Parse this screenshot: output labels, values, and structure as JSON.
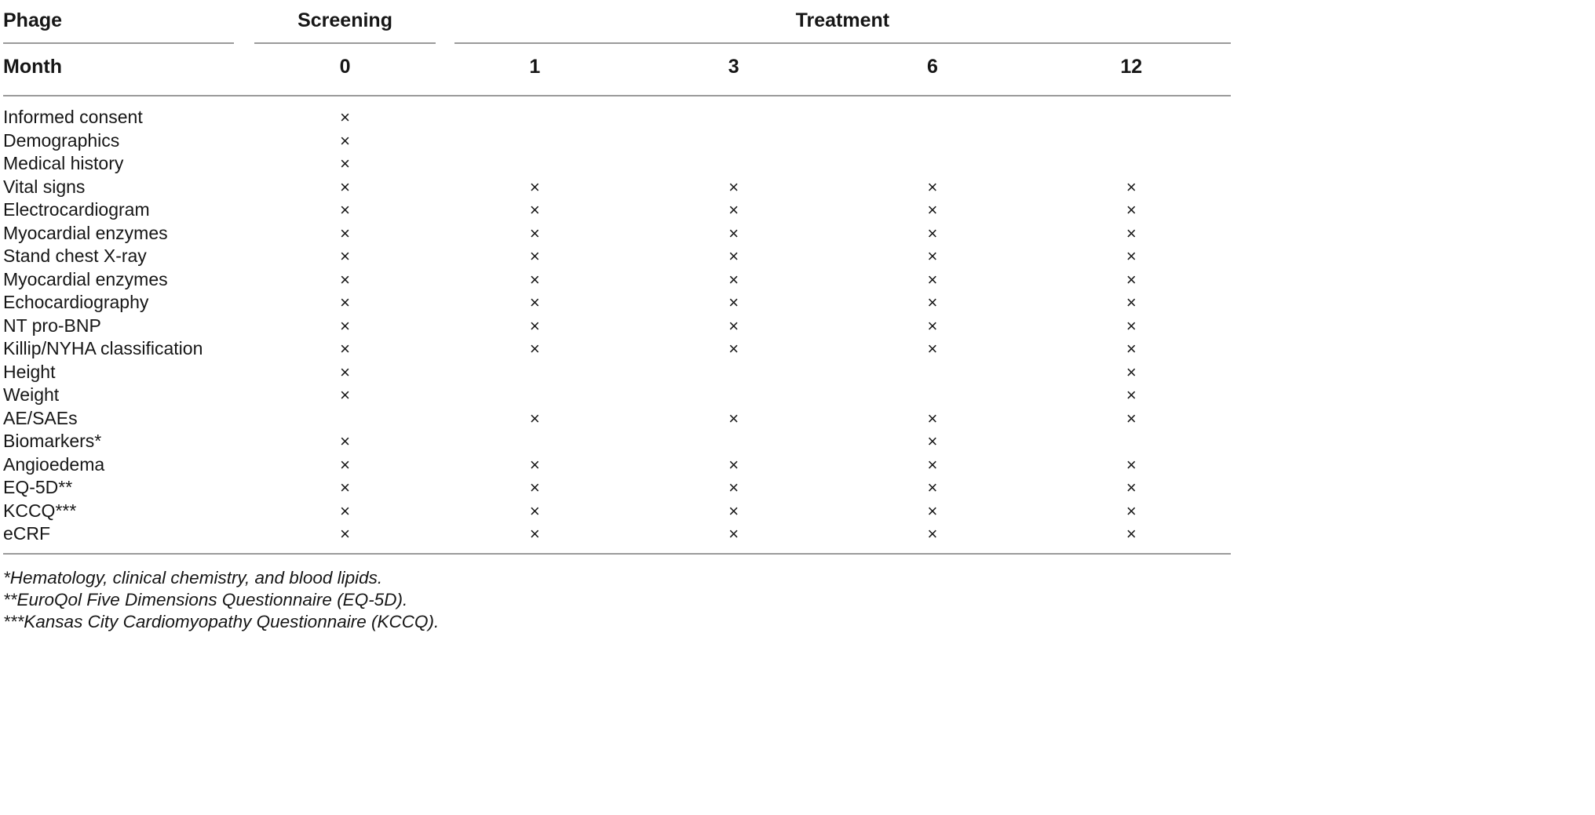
{
  "table": {
    "group_header": {
      "phage": "Phage",
      "screening": "Screening",
      "treatment": "Treatment"
    },
    "month_header": {
      "label": "Month",
      "months": [
        "0",
        "1",
        "3",
        "6",
        "12"
      ]
    },
    "mark": "×",
    "rows": [
      {
        "label": "Informed consent",
        "marks": [
          1,
          0,
          0,
          0,
          0
        ]
      },
      {
        "label": "Demographics",
        "marks": [
          1,
          0,
          0,
          0,
          0
        ]
      },
      {
        "label": "Medical history",
        "marks": [
          1,
          0,
          0,
          0,
          0
        ]
      },
      {
        "label": "Vital signs",
        "marks": [
          1,
          1,
          1,
          1,
          1
        ]
      },
      {
        "label": "Electrocardiogram",
        "marks": [
          1,
          1,
          1,
          1,
          1
        ]
      },
      {
        "label": "Myocardial enzymes",
        "marks": [
          1,
          1,
          1,
          1,
          1
        ]
      },
      {
        "label": "Stand chest X-ray",
        "marks": [
          1,
          1,
          1,
          1,
          1
        ]
      },
      {
        "label": "Myocardial enzymes",
        "marks": [
          1,
          1,
          1,
          1,
          1
        ]
      },
      {
        "label": "Echocardiography",
        "marks": [
          1,
          1,
          1,
          1,
          1
        ]
      },
      {
        "label": "NT pro-BNP",
        "marks": [
          1,
          1,
          1,
          1,
          1
        ]
      },
      {
        "label": "Killip/NYHA classification",
        "marks": [
          1,
          1,
          1,
          1,
          1
        ]
      },
      {
        "label": "Height",
        "marks": [
          1,
          0,
          0,
          0,
          1
        ]
      },
      {
        "label": "Weight",
        "marks": [
          1,
          0,
          0,
          0,
          1
        ]
      },
      {
        "label": "AE/SAEs",
        "marks": [
          0,
          1,
          1,
          1,
          1
        ]
      },
      {
        "label": "Biomarkers*",
        "marks": [
          1,
          0,
          0,
          1,
          0
        ]
      },
      {
        "label": "Angioedema",
        "marks": [
          1,
          1,
          1,
          1,
          1
        ]
      },
      {
        "label": "EQ-5D**",
        "marks": [
          1,
          1,
          1,
          1,
          1
        ]
      },
      {
        "label": "KCCQ***",
        "marks": [
          1,
          1,
          1,
          1,
          1
        ]
      },
      {
        "label": "eCRF",
        "marks": [
          1,
          1,
          1,
          1,
          1
        ]
      }
    ],
    "footnotes": [
      "*Hematology, clinical chemistry, and blood lipids.",
      "**EuroQol Five Dimensions Questionnaire (EQ-5D).",
      "***Kansas City Cardiomyopathy Questionnaire (KCCQ)."
    ]
  }
}
